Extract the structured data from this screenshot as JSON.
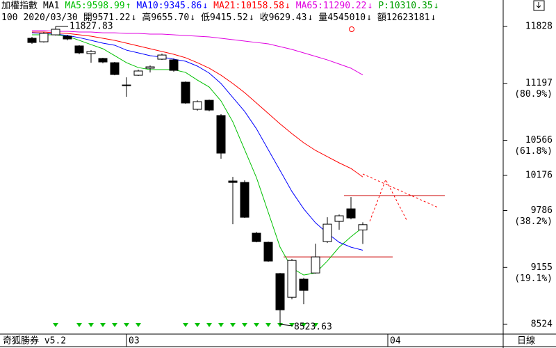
{
  "chart_data": {
    "type": "candlestick",
    "title": "加權指數",
    "indicator": "MA1",
    "up_color": "#ffffff",
    "down_color": "#000000",
    "categories": [
      null,
      null,
      null,
      null,
      null,
      null,
      null,
      null,
      null,
      null,
      null,
      null,
      null,
      null,
      null,
      null,
      null,
      null,
      null,
      null,
      null,
      null,
      null,
      null,
      null,
      null,
      null,
      null,
      null
    ],
    "open": [
      11697,
      11658,
      11735,
      11720,
      11612,
      11527,
      11473,
      11426,
      11179,
      11287,
      11365,
      11465,
      11457,
      11210,
      10909,
      11009,
      10840,
      10114,
      10098,
      9535,
      9434,
      9087,
      8824,
      9025,
      9094,
      9442,
      9666,
      9805,
      9571.22
    ],
    "high": [
      11712,
      11766,
      11827.83,
      11735,
      11620,
      11565,
      11481,
      11434,
      11264,
      11349,
      11396,
      11527,
      11473,
      11218,
      11009,
      11017,
      10855,
      10160,
      10121,
      9550,
      9442,
      9094,
      9249,
      9040,
      9419,
      9712,
      9743,
      9936,
      9655.7
    ],
    "low": [
      11635,
      11650,
      11728,
      11674,
      11519,
      11426,
      11419,
      11287,
      11048,
      11280,
      11318,
      11457,
      11326,
      10971,
      10894,
      10886,
      10361,
      9635,
      9704,
      9434,
      9218,
      8523.63,
      8801,
      8747,
      9087,
      9426,
      9573,
      9689,
      9415.52
    ],
    "close": [
      11650,
      11751,
      11797,
      11689,
      11535,
      11550,
      11434,
      11295,
      11172,
      11334,
      11380,
      11511,
      11341,
      10979,
      10994,
      10901,
      10423,
      10098,
      9712,
      9442,
      9226,
      8685,
      9233,
      8901,
      9272,
      9635,
      9728,
      9704,
      9629.43
    ],
    "series": [
      {
        "name": "MA5:9598.99",
        "trend": "↑",
        "color": "#00c000",
        "values": [
          11735,
          11735,
          11735,
          11720,
          11674,
          11627,
          11581,
          11504,
          11426,
          11372,
          11349,
          11349,
          11349,
          11318,
          11233,
          11156,
          11002,
          10770,
          10461,
          10152,
          9766,
          9380,
          9148,
          9071,
          9094,
          9226,
          9380,
          9496,
          9598.99
        ]
      },
      {
        "name": "MA10:9345.86",
        "trend": "↓",
        "color": "#0000ff",
        "values": [
          11758,
          11751,
          11743,
          11728,
          11704,
          11674,
          11643,
          11620,
          11565,
          11535,
          11504,
          11488,
          11465,
          11442,
          11388,
          11311,
          11195,
          11040,
          10886,
          10693,
          10461,
          10230,
          9998,
          9805,
          9650,
          9535,
          9434,
          9380,
          9345.86
        ]
      },
      {
        "name": "MA21:10158.58",
        "trend": "↓",
        "color": "#ff0000",
        "values": [
          11766,
          11766,
          11758,
          11751,
          11735,
          11720,
          11697,
          11674,
          11643,
          11612,
          11581,
          11550,
          11519,
          11481,
          11426,
          11365,
          11287,
          11195,
          11094,
          10979,
          10863,
          10747,
          10639,
          10538,
          10453,
          10384,
          10315,
          10253,
          10158.58
        ]
      },
      {
        "name": "MA65:11290.22",
        "trend": "↓",
        "color": "#e000e0",
        "values": [
          11782,
          11782,
          11774,
          11774,
          11766,
          11766,
          11758,
          11758,
          11751,
          11751,
          11743,
          11743,
          11735,
          11728,
          11720,
          11712,
          11697,
          11681,
          11666,
          11650,
          11635,
          11604,
          11573,
          11535,
          11496,
          11457,
          11411,
          11365,
          11290.22
        ]
      }
    ],
    "extra_indicator": {
      "text": "P:10310.35",
      "trend": "↓",
      "color": "#00a000"
    },
    "info": [
      {
        "text": "100"
      },
      {
        "text": "2020/03/30"
      },
      {
        "text": "開9571.22",
        "trend": "↓"
      },
      {
        "text": "高9655.70",
        "trend": "↓"
      },
      {
        "text": "低9415.52",
        "trend": "↓"
      },
      {
        "text": "收9629.43",
        "trend": "↓"
      },
      {
        "text": "量4545010",
        "trend": "↓"
      },
      {
        "text": "額12623181",
        "trend": "↓"
      }
    ],
    "high_label": "11827.83",
    "low_label": "8523.63",
    "support_lines": [
      {
        "value": 9952,
        "color": "#cc0000"
      },
      {
        "value": 9272,
        "color": "#cc0000"
      }
    ],
    "ylim": [
      8416,
      11967
    ],
    "yticks": [
      11828,
      11197,
      10566,
      10176,
      9786,
      9155,
      8524
    ],
    "fib_levels": [
      {
        "value": 11197,
        "label": "(80.9%)"
      },
      {
        "value": 10566,
        "label": "(61.8%)"
      },
      {
        "value": 9786,
        "label": "(38.2%)"
      },
      {
        "value": 9155,
        "label": "(19.1%)"
      }
    ],
    "x_labels": [
      "03",
      "04"
    ],
    "footer_left": "奇狐勝券 v5.2",
    "footer_right": "日線"
  }
}
